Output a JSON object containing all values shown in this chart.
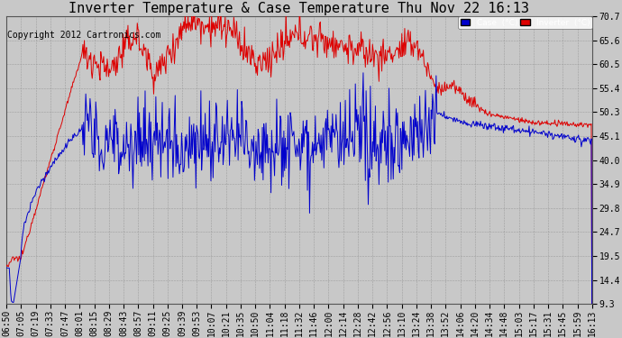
{
  "title": "Inverter Temperature & Case Temperature Thu Nov 22 16:13",
  "copyright": "Copyright 2012 Cartronics.com",
  "ylim": [
    9.3,
    70.7
  ],
  "yticks": [
    9.3,
    14.4,
    19.5,
    24.7,
    29.8,
    34.9,
    40.0,
    45.1,
    50.3,
    55.4,
    60.5,
    65.6,
    70.7
  ],
  "bg_color": "#c8c8c8",
  "plot_bg_color": "#c8c8c8",
  "grid_color": "#aaaaaa",
  "inverter_color": "#dd0000",
  "case_color": "#0000cc",
  "title_fontsize": 11,
  "tick_fontsize": 7,
  "copyright_fontsize": 7,
  "xtick_labels": [
    "06:50",
    "07:05",
    "07:19",
    "07:33",
    "07:47",
    "08:01",
    "08:15",
    "08:29",
    "08:43",
    "08:57",
    "09:11",
    "09:25",
    "09:39",
    "09:53",
    "10:07",
    "10:21",
    "10:35",
    "10:50",
    "11:04",
    "11:18",
    "11:32",
    "11:46",
    "12:00",
    "12:14",
    "12:28",
    "12:42",
    "12:56",
    "13:10",
    "13:24",
    "13:38",
    "13:52",
    "14:06",
    "14:20",
    "14:34",
    "14:48",
    "15:03",
    "15:17",
    "15:31",
    "15:45",
    "15:59",
    "16:13"
  ]
}
